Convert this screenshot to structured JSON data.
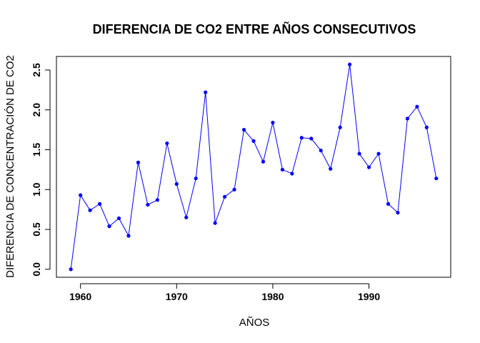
{
  "chart_data": {
    "type": "line",
    "title": "DIFERENCIA DE CO2 ENTRE AÑOS CONSECUTIVOS",
    "xlabel": "AÑOS",
    "ylabel": "DIFERENCIA DE CONCENTRACIÓN DE CO2",
    "xlim": [
      1957.5,
      1998.5
    ],
    "ylim": [
      -0.1,
      2.67
    ],
    "xticks": [
      1960,
      1970,
      1980,
      1990
    ],
    "xtick_labels": [
      "1960",
      "1970",
      "1980",
      "1990"
    ],
    "yticks": [
      0,
      0.5,
      1,
      1.5,
      2,
      2.5
    ],
    "ytick_labels": [
      "0.0",
      "0.5",
      "1.0",
      "1.5",
      "2.0",
      "2.5"
    ],
    "grid": false,
    "legend": "none",
    "series": [
      {
        "color": "#0000ff",
        "x": [
          1959,
          1960,
          1961,
          1962,
          1963,
          1964,
          1965,
          1966,
          1967,
          1968,
          1969,
          1970,
          1971,
          1972,
          1973,
          1974,
          1975,
          1976,
          1977,
          1978,
          1979,
          1980,
          1981,
          1982,
          1983,
          1984,
          1985,
          1986,
          1987,
          1988,
          1989,
          1990,
          1991,
          1992,
          1993,
          1994,
          1995,
          1996,
          1997
        ],
        "values": [
          0.0,
          0.93,
          0.74,
          0.82,
          0.54,
          0.64,
          0.42,
          1.34,
          0.81,
          0.87,
          1.58,
          1.07,
          0.65,
          1.14,
          2.22,
          0.58,
          0.91,
          1.0,
          1.75,
          1.61,
          1.35,
          1.84,
          1.25,
          1.2,
          1.65,
          1.64,
          1.49,
          1.26,
          1.78,
          2.57,
          1.45,
          1.28,
          1.45,
          0.82,
          0.71,
          1.89,
          2.04,
          1.78,
          1.14
        ]
      }
    ]
  }
}
